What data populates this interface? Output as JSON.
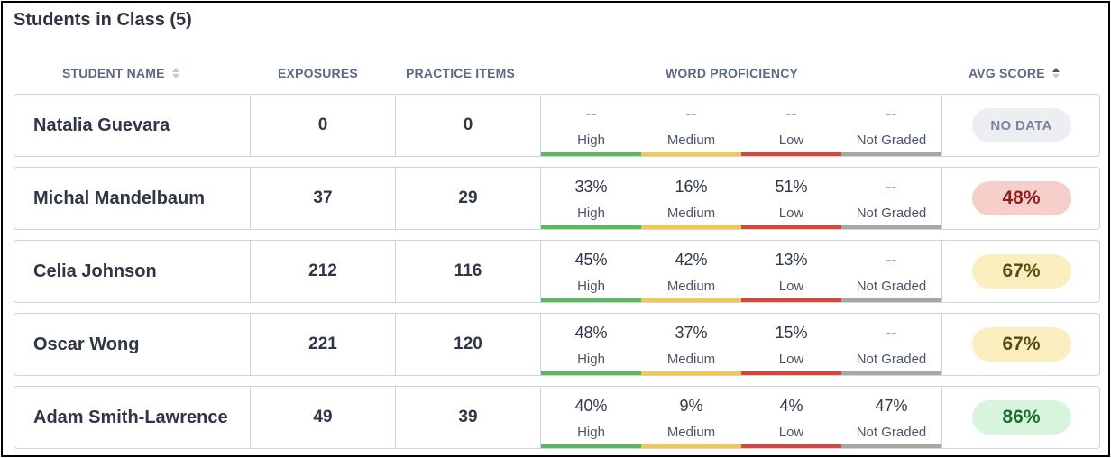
{
  "title": "Students in Class (5)",
  "headers": {
    "student_name": "STUDENT NAME",
    "exposures": "EXPOSURES",
    "practice_items": "PRACTICE ITEMS",
    "word_proficiency": "WORD PROFICIENCY",
    "avg_score": "AVG SCORE"
  },
  "proficiency_labels": [
    "High",
    "Medium",
    "Low",
    "Not Graded"
  ],
  "proficiency_colors": [
    "#5cb85c",
    "#f2c94c",
    "#d9453b",
    "#a7a7a7"
  ],
  "score_styles": {
    "red": {
      "bg": "#f6cfcb",
      "fg": "#8b1e1e"
    },
    "yellow": {
      "bg": "#fbefc0",
      "fg": "#5b4a0e"
    },
    "green": {
      "bg": "#d7f5dc",
      "fg": "#1f6b2f"
    }
  },
  "students": [
    {
      "name": "Natalia Guevara",
      "exposures": "0",
      "practice_items": "0",
      "proficiency": [
        "--",
        "--",
        "--",
        "--"
      ],
      "avg_score": "NO DATA",
      "score_style": "nodata"
    },
    {
      "name": "Michal Mandelbaum",
      "exposures": "37",
      "practice_items": "29",
      "proficiency": [
        "33%",
        "16%",
        "51%",
        "--"
      ],
      "avg_score": "48%",
      "score_style": "red"
    },
    {
      "name": "Celia Johnson",
      "exposures": "212",
      "practice_items": "116",
      "proficiency": [
        "45%",
        "42%",
        "13%",
        "--"
      ],
      "avg_score": "67%",
      "score_style": "yellow"
    },
    {
      "name": "Oscar Wong",
      "exposures": "221",
      "practice_items": "120",
      "proficiency": [
        "48%",
        "37%",
        "15%",
        "--"
      ],
      "avg_score": "67%",
      "score_style": "yellow"
    },
    {
      "name": "Adam Smith-Lawrence",
      "exposures": "49",
      "practice_items": "39",
      "proficiency": [
        "40%",
        "9%",
        "4%",
        "47%"
      ],
      "avg_score": "86%",
      "score_style": "green"
    }
  ]
}
